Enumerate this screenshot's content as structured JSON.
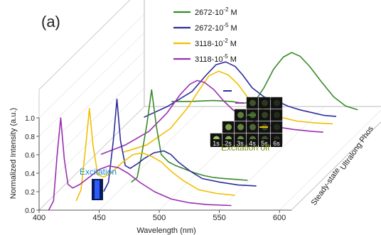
{
  "chart_data": {
    "type": "line",
    "panel_label": "(a)",
    "xlabel": "Wavelength (nm)",
    "ylabel": "Normalized Intensity (a.u.)",
    "xlim": [
      400,
      610
    ],
    "ylim": [
      0.0,
      1.0
    ],
    "x_ticks": [
      "400",
      "450",
      "500",
      "550",
      "600"
    ],
    "y_ticks": [
      "0.0",
      "0.2",
      "0.4",
      "0.6",
      "0.8",
      "1.0"
    ],
    "depth_axis_labels": [
      "Steady-state",
      "Ultralong Phos"
    ],
    "legend": [
      {
        "base": "2672-10",
        "exp": "-2",
        "unit": " M",
        "color": "#3a8a2a"
      },
      {
        "base": "2672-10",
        "exp": "-5",
        "unit": " M",
        "color": "#2d2d9c"
      },
      {
        "base": "3118-10",
        "exp": "-2",
        "unit": " M",
        "color": "#f0c000"
      },
      {
        "base": "3118-10",
        "exp": "-5",
        "unit": " M",
        "color": "#9a2fb0"
      }
    ],
    "series": [
      {
        "name": "2672-10-2 M",
        "color": "#3a8a2a",
        "steady_state": {
          "x": [
            453,
            458,
            462,
            466,
            470,
            474,
            478,
            484,
            490,
            498,
            506,
            514,
            522,
            530,
            540,
            550
          ],
          "y": [
            0.0,
            0.05,
            0.32,
            0.62,
            1.0,
            0.6,
            0.3,
            0.22,
            0.18,
            0.14,
            0.1,
            0.07,
            0.05,
            0.04,
            0.03,
            0.02
          ]
        },
        "ultralong_phos": {
          "x": [
            455,
            470,
            490,
            505,
            515,
            525,
            532,
            540,
            548,
            555,
            562,
            570,
            580,
            590,
            600,
            610
          ],
          "y": [
            0.47,
            0.47,
            0.48,
            0.47,
            0.45,
            0.48,
            0.62,
            0.82,
            0.95,
            1.0,
            0.96,
            0.85,
            0.68,
            0.52,
            0.42,
            0.38
          ]
        }
      },
      {
        "name": "2672-10-5 M",
        "color": "#2d2d9c",
        "steady_state": {
          "x": [
            438,
            442,
            446,
            449,
            452,
            456,
            460,
            466,
            472,
            480,
            488,
            494,
            500,
            510,
            520,
            535,
            550,
            565
          ],
          "y": [
            0.0,
            0.1,
            0.55,
            1.0,
            0.55,
            0.28,
            0.25,
            0.3,
            0.36,
            0.42,
            0.44,
            0.4,
            0.32,
            0.22,
            0.14,
            0.1,
            0.07,
            0.06
          ]
        },
        "ultralong_phos": {
          "x": [
            440,
            460,
            480,
            492,
            500,
            508,
            516,
            522,
            530,
            540,
            550,
            560,
            570,
            580,
            590,
            600
          ],
          "y": [
            0.4,
            0.52,
            0.68,
            0.86,
            0.97,
            1.0,
            0.95,
            0.86,
            0.72,
            0.62,
            0.58,
            0.52,
            0.48,
            0.45,
            0.42,
            0.41
          ]
        }
      },
      {
        "name": "3118-10-2 M",
        "color": "#f0c000",
        "steady_state": {
          "x": [
            423,
            427,
            431,
            434,
            437,
            441,
            446,
            452,
            460,
            470,
            478,
            486,
            494,
            502,
            512,
            525,
            540,
            555
          ],
          "y": [
            0.0,
            0.12,
            0.6,
            1.0,
            0.6,
            0.28,
            0.26,
            0.3,
            0.4,
            0.5,
            0.52,
            0.48,
            0.42,
            0.32,
            0.22,
            0.12,
            0.08,
            0.06
          ]
        },
        "ultralong_phos": {
          "x": [
            430,
            450,
            470,
            484,
            494,
            502,
            510,
            518,
            526,
            534,
            542,
            552,
            562,
            575,
            590,
            605
          ],
          "y": [
            0.12,
            0.2,
            0.38,
            0.6,
            0.8,
            0.95,
            1.0,
            0.96,
            0.86,
            0.72,
            0.62,
            0.56,
            0.5,
            0.46,
            0.44,
            0.43
          ]
        }
      },
      {
        "name": "3118-10-5 M",
        "color": "#9a2fb0",
        "steady_state": {
          "x": [
            408,
            412,
            415,
            418,
            421,
            424,
            428,
            434,
            442,
            450,
            458,
            466,
            474,
            484,
            496,
            510,
            525,
            540,
            560
          ],
          "y": [
            0.0,
            0.1,
            0.6,
            1.0,
            0.55,
            0.28,
            0.24,
            0.28,
            0.36,
            0.44,
            0.48,
            0.46,
            0.4,
            0.3,
            0.2,
            0.12,
            0.08,
            0.06,
            0.05
          ]
        },
        "ultralong_phos": {
          "x": [
            420,
            440,
            460,
            475,
            486,
            494,
            500,
            506,
            514,
            522,
            530,
            540,
            552,
            565,
            580,
            595,
            605
          ],
          "y": [
            0.2,
            0.3,
            0.45,
            0.65,
            0.85,
            0.96,
            1.0,
            0.98,
            0.9,
            0.78,
            0.68,
            0.6,
            0.54,
            0.5,
            0.47,
            0.45,
            0.44
          ]
        }
      }
    ],
    "inset_excitation": {
      "label": "Excitation",
      "label_color": "#1a8fd0",
      "image_color": "#2b5cff"
    },
    "inset_decay": {
      "time_labels": [
        "1s",
        "2s",
        "3s",
        "4s",
        "5s",
        "6s"
      ],
      "caption": "Excitation off",
      "caption_color": "#7a8a1a",
      "marker_colors": [
        "#2d2d9c",
        "#9a2fb0",
        "#3a8a2a",
        "#f0c000"
      ]
    }
  }
}
